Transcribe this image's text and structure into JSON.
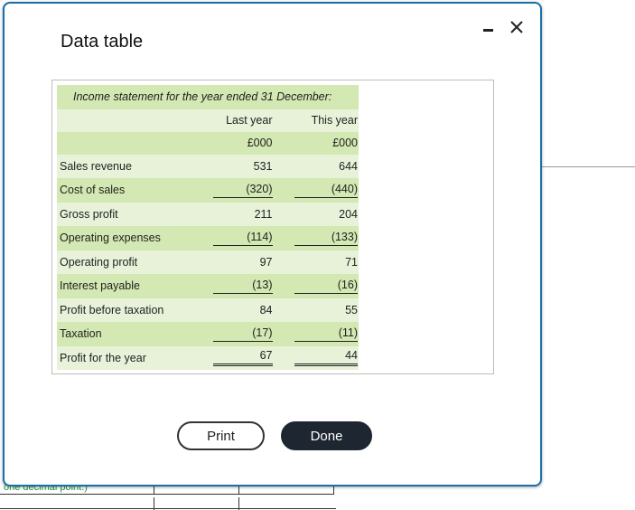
{
  "dialog": {
    "title": "Data table",
    "print_label": "Print",
    "done_label": "Done"
  },
  "statement": {
    "caption": "Income statement for the year ended 31 December:",
    "col_headers": [
      "Last year",
      "This year"
    ],
    "units": [
      "£000",
      "£000"
    ],
    "rows": [
      {
        "label": "Sales revenue",
        "last": "531",
        "this": "644"
      },
      {
        "label": "Cost of sales",
        "last": "(320)",
        "this": "(440)"
      },
      {
        "label": "Gross profit",
        "last": "211",
        "this": "204"
      },
      {
        "label": "Operating expenses",
        "last": "(114)",
        "this": "(133)"
      },
      {
        "label": "Operating profit",
        "last": "97",
        "this": "71"
      },
      {
        "label": "Interest payable",
        "last": "(13)",
        "this": "(16)"
      },
      {
        "label": "Profit before taxation",
        "last": "84",
        "this": "55"
      },
      {
        "label": "Taxation",
        "last": "(17)",
        "this": "(11)"
      },
      {
        "label": "Profit for the year",
        "last": "67",
        "this": "44"
      }
    ]
  },
  "background": {
    "partial_text": "one decimal point.)"
  },
  "colors": {
    "row_green": "#d3e8b2",
    "row_light": "#e7f2d9",
    "border_blue": "#1b6fa8",
    "done_button": "#1d2631"
  }
}
